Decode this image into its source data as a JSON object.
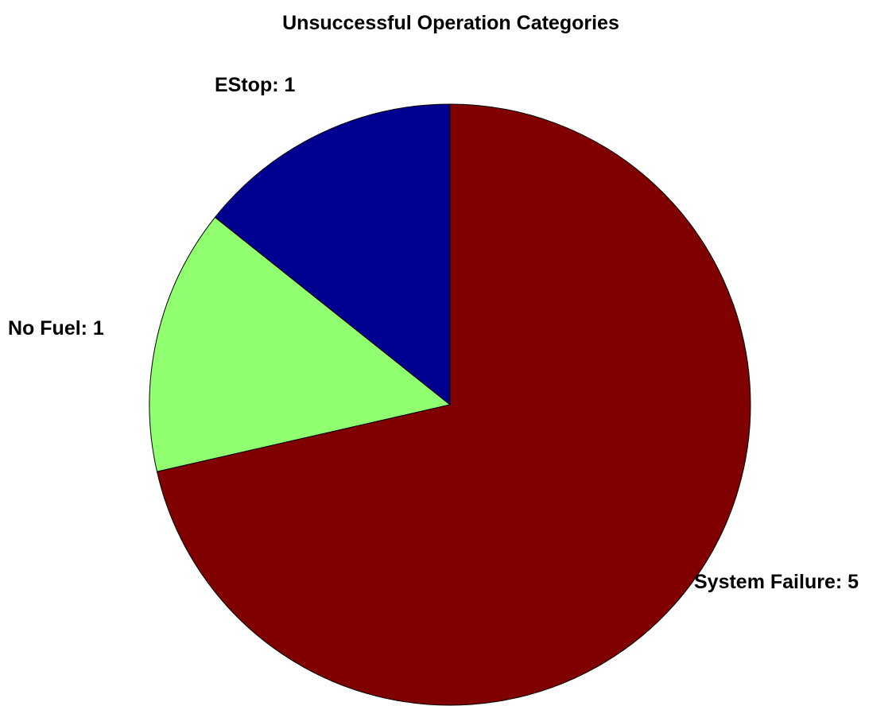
{
  "chart_data": {
    "type": "pie",
    "title": "Unsuccessful Operation Categories",
    "start": "top",
    "direction": "clockwise",
    "slices": [
      {
        "label": "System Failure",
        "value": 5,
        "text": "System Failure: 5",
        "color": "#800000"
      },
      {
        "label": "No Fuel",
        "value": 1,
        "text": "No Fuel: 1",
        "color": "#90FF70"
      },
      {
        "label": "EStop",
        "value": 1,
        "text": "EStop: 1",
        "color": "#000090"
      }
    ]
  }
}
